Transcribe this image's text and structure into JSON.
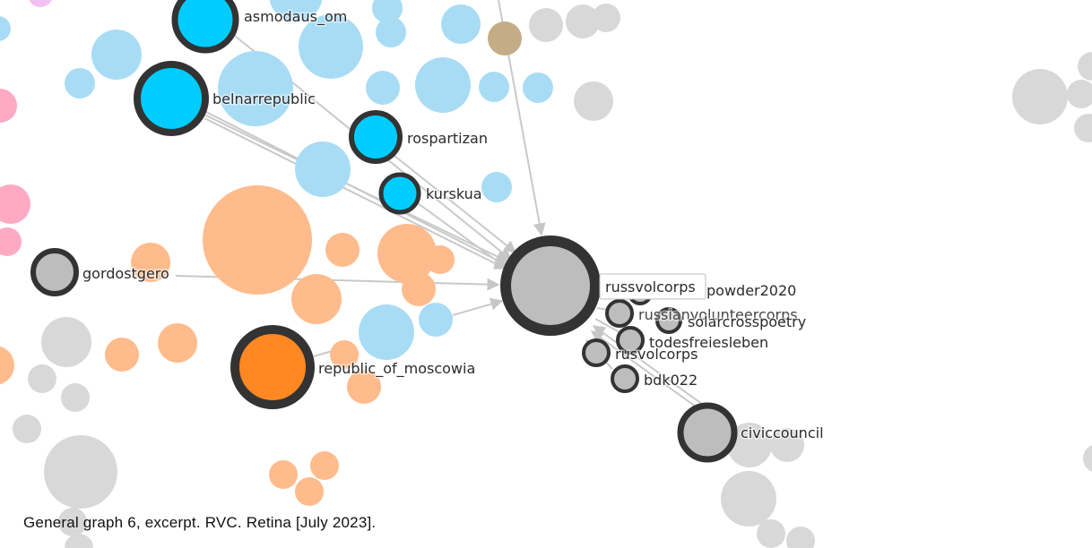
{
  "caption": "General graph 6, excerpt. RVC. Retina [July 2023].",
  "colors": {
    "telegram_blue": "#00ccff",
    "light_blue": "#a8dcf5",
    "orange": "#ff8822",
    "peach": "#ffbb8c",
    "gray": "#bdbdbd",
    "light_gray": "#d8d8d8",
    "pink": "#ffaac4",
    "tan": "#c4ad86",
    "ring": "#333333",
    "edge": "#c6c6c6"
  },
  "labeled_nodes": [
    {
      "id": "asmodaus_om",
      "label": "asmodaus_om"
    },
    {
      "id": "belnarrepublic",
      "label": "belnarrepublic"
    },
    {
      "id": "rospartizan",
      "label": "rospartizan"
    },
    {
      "id": "kurskua",
      "label": "kurskua"
    },
    {
      "id": "gordostgero",
      "label": "gordostgero"
    },
    {
      "id": "republic_of_moscowia",
      "label": "republic_of_moscowia"
    },
    {
      "id": "russvolcorps",
      "label": "russvolcorps"
    },
    {
      "id": "powder2020",
      "label": "powder2020"
    },
    {
      "id": "russianvolunteercorps",
      "label": "russianvolunteercorps"
    },
    {
      "id": "solarcrosspoetry",
      "label": "solarcrosspoetry"
    },
    {
      "id": "todesfreiesleben",
      "label": "todesfreiesleben"
    },
    {
      "id": "rusvolcorps",
      "label": "rusvolcorps"
    },
    {
      "id": "bdk022",
      "label": "bdk022"
    },
    {
      "id": "civiccouncil",
      "label": "civiccouncil"
    }
  ]
}
